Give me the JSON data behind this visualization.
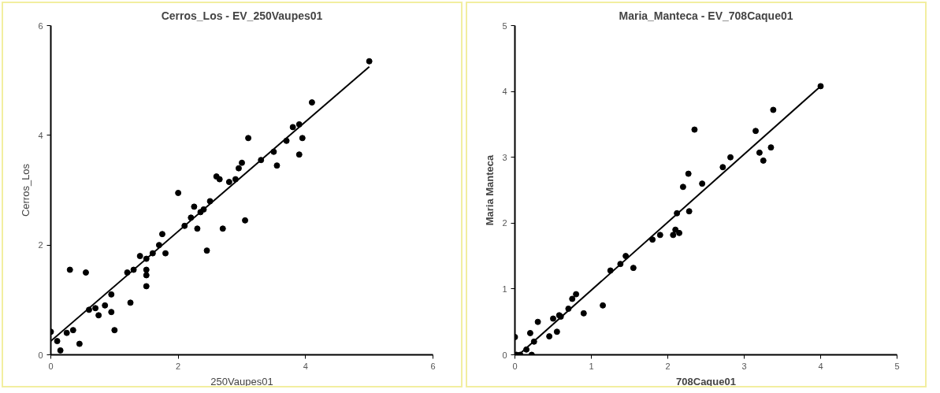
{
  "chart_data": [
    {
      "type": "scatter",
      "title": "Cerros_Los - EV_250Vaupes01",
      "xlabel": "250Vaupes01",
      "ylabel": "Cerros_Los",
      "xlim": [
        0,
        6
      ],
      "ylim": [
        0,
        6
      ],
      "xticks": [
        0,
        2,
        4,
        6
      ],
      "yticks": [
        0,
        2,
        4,
        6
      ],
      "grid": false,
      "series": [
        {
          "color": "#000000",
          "marker": "circle",
          "x": [
            0,
            0.1,
            0.15,
            0.25,
            0.3,
            0.35,
            0.45,
            0.55,
            0.6,
            0.7,
            0.75,
            0.85,
            0.95,
            0.95,
            1.0,
            1.2,
            1.25,
            1.3,
            1.4,
            1.5,
            1.5,
            1.5,
            1.5,
            1.6,
            1.7,
            1.75,
            1.8,
            2.0,
            2.1,
            2.2,
            2.25,
            2.3,
            2.35,
            2.4,
            2.45,
            2.5,
            2.6,
            2.65,
            2.7,
            2.8,
            2.9,
            2.95,
            3.0,
            3.05,
            3.1,
            3.3,
            3.5,
            3.55,
            3.7,
            3.8,
            3.9,
            3.9,
            3.95,
            4.1,
            5.0
          ],
          "values": [
            0.42,
            0.25,
            0.08,
            0.4,
            1.55,
            0.45,
            0.2,
            1.5,
            0.82,
            0.85,
            0.72,
            0.9,
            1.1,
            0.78,
            0.45,
            1.5,
            0.95,
            1.55,
            1.8,
            1.75,
            1.55,
            1.45,
            1.25,
            1.85,
            2.0,
            2.2,
            1.85,
            2.95,
            2.35,
            2.5,
            2.7,
            2.3,
            2.6,
            2.65,
            1.9,
            2.8,
            3.25,
            3.2,
            2.3,
            3.15,
            3.2,
            3.4,
            3.5,
            2.45,
            3.95,
            3.55,
            3.7,
            3.45,
            3.9,
            4.15,
            4.2,
            3.65,
            3.95,
            4.6,
            5.35
          ]
        },
        {
          "type": "line",
          "color": "#000000",
          "x": [
            0,
            5
          ],
          "values": [
            0.25,
            5.25
          ]
        }
      ]
    },
    {
      "type": "scatter",
      "title": "Maria_Manteca - EV_708Caque01",
      "xlabel": "708Caque01",
      "ylabel": "Maria Manteca",
      "xlim": [
        0,
        5
      ],
      "ylim": [
        0,
        5
      ],
      "xticks": [
        0,
        1,
        2,
        3,
        4,
        5
      ],
      "yticks": [
        0,
        1,
        2,
        3,
        4,
        5
      ],
      "grid": false,
      "series": [
        {
          "color": "#000000",
          "marker": "circle",
          "x": [
            0,
            0.02,
            0.07,
            0.15,
            0.2,
            0.22,
            0.25,
            0.3,
            0.45,
            0.5,
            0.55,
            0.58,
            0.6,
            0.7,
            0.75,
            0.8,
            0.9,
            1.15,
            1.25,
            1.38,
            1.45,
            1.55,
            1.8,
            1.9,
            2.07,
            2.1,
            2.15,
            2.12,
            2.2,
            2.27,
            2.28,
            2.35,
            2.45,
            2.72,
            2.82,
            3.15,
            3.2,
            3.25,
            3.35,
            3.38,
            4.0
          ],
          "values": [
            0.27,
            0,
            0,
            0.08,
            0.33,
            0,
            0.2,
            0.5,
            0.28,
            0.55,
            0.35,
            0.6,
            0.58,
            0.7,
            0.85,
            0.92,
            0.63,
            0.75,
            1.28,
            1.38,
            1.5,
            1.32,
            1.75,
            1.82,
            1.82,
            1.9,
            1.85,
            2.15,
            2.55,
            2.75,
            2.18,
            3.42,
            2.6,
            2.85,
            3.0,
            3.4,
            3.07,
            2.95,
            3.15,
            3.72,
            4.08
          ]
        },
        {
          "type": "line",
          "color": "#000000",
          "x": [
            0.05,
            4
          ],
          "values": [
            0,
            4.08
          ]
        }
      ]
    }
  ]
}
